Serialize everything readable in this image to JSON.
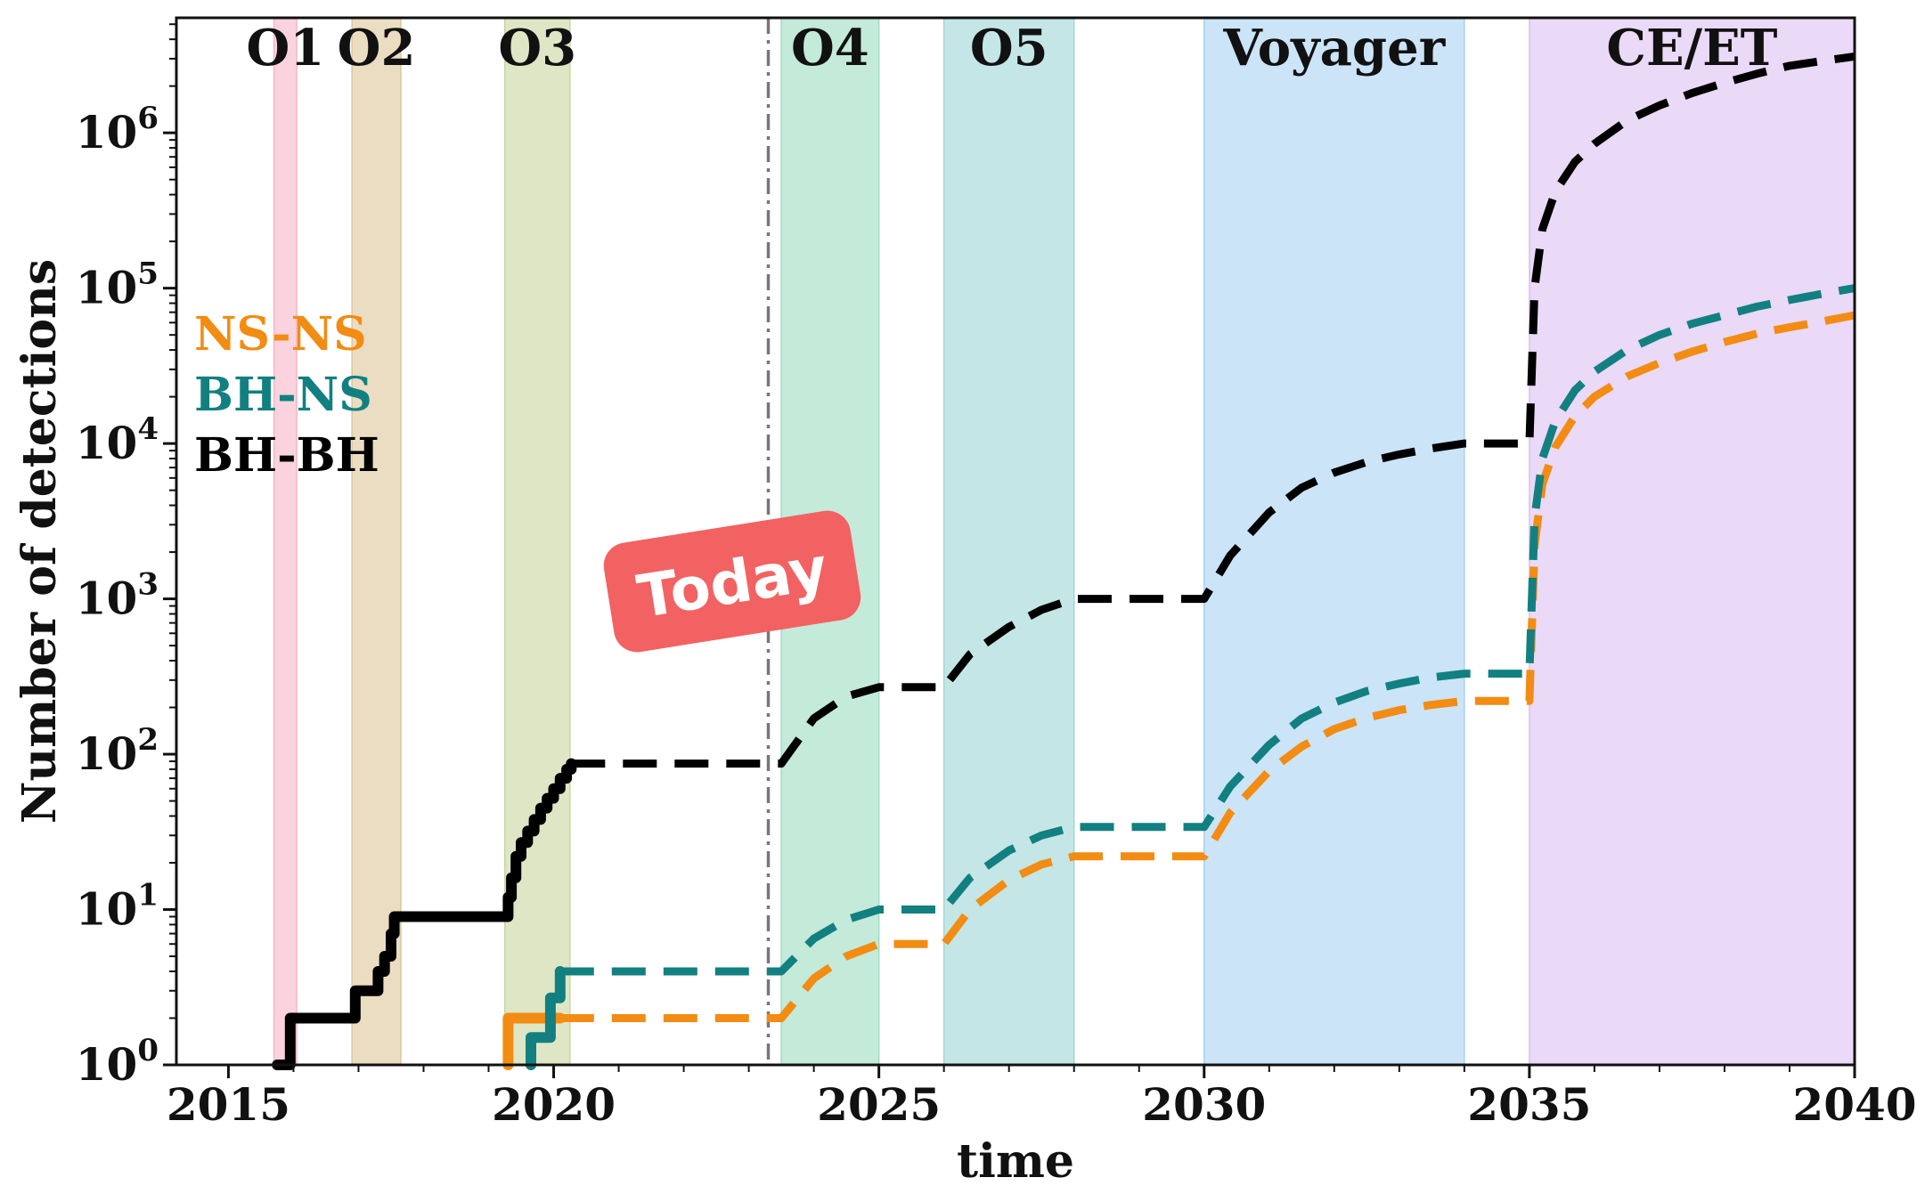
{
  "chart_data": {
    "type": "line",
    "xlabel": "time",
    "ylabel": "Number of detections",
    "xlim": [
      2014.2,
      2040
    ],
    "ylim": [
      1,
      5500000
    ],
    "yscale": "log",
    "grid": false,
    "legend_placement": "left",
    "x_ticks": [
      2015,
      2020,
      2025,
      2030,
      2035,
      2040
    ],
    "y_ticks": [
      {
        "value": 1,
        "base": "10",
        "exp": "0"
      },
      {
        "value": 10,
        "base": "10",
        "exp": "1"
      },
      {
        "value": 100,
        "base": "10",
        "exp": "2"
      },
      {
        "value": 1000,
        "base": "10",
        "exp": "3"
      },
      {
        "value": 10000,
        "base": "10",
        "exp": "4"
      },
      {
        "value": 100000,
        "base": "10",
        "exp": "5"
      },
      {
        "value": 1000000,
        "base": "10",
        "exp": "6"
      }
    ],
    "runs": [
      {
        "label": "O1",
        "start": 2015.7,
        "end": 2016.05,
        "color": "#f7b6c8"
      },
      {
        "label": "O2",
        "start": 2016.9,
        "end": 2017.65,
        "color": "#dcc69a"
      },
      {
        "label": "O3",
        "start": 2019.25,
        "end": 2020.25,
        "color": "#c8d59e"
      },
      {
        "label": "O4",
        "start": 2023.5,
        "end": 2025.0,
        "color": "#9ddcc0"
      },
      {
        "label": "O5",
        "start": 2026.0,
        "end": 2028.0,
        "color": "#9fd6d6"
      },
      {
        "label": "Voyager",
        "start": 2030.0,
        "end": 2034.0,
        "color": "#a8d2f2"
      },
      {
        "label": "CE/ET",
        "start": 2035.0,
        "end": 2040.0,
        "color": "#dcc0f2"
      }
    ],
    "today": {
      "x": 2023.3,
      "label": "Today",
      "badge_color": "#f26262"
    },
    "series": [
      {
        "name": "NS-NS",
        "color": "#f28c13",
        "observed": [
          [
            2019.3,
            1
          ],
          [
            2019.3,
            2
          ],
          [
            2020.1,
            2
          ]
        ],
        "projected": [
          [
            2020.1,
            2
          ],
          [
            2023.5,
            2
          ],
          [
            2024.0,
            3.6
          ],
          [
            2024.5,
            5
          ],
          [
            2025.0,
            6
          ],
          [
            2026.0,
            6
          ],
          [
            2026.4,
            10
          ],
          [
            2027.0,
            15.5
          ],
          [
            2027.5,
            19.5
          ],
          [
            2028.0,
            22
          ],
          [
            2030.0,
            22
          ],
          [
            2030.4,
            42
          ],
          [
            2031.0,
            78
          ],
          [
            2031.5,
            112
          ],
          [
            2032.0,
            145
          ],
          [
            2032.5,
            171
          ],
          [
            2033.0,
            192
          ],
          [
            2033.5,
            208
          ],
          [
            2034.0,
            220
          ],
          [
            2035.0,
            220
          ],
          [
            2035.08,
            2200
          ],
          [
            2035.2,
            5500
          ],
          [
            2035.4,
            9500
          ],
          [
            2035.7,
            15000
          ],
          [
            2036.0,
            20000
          ],
          [
            2036.5,
            27000
          ],
          [
            2037.0,
            33000
          ],
          [
            2037.5,
            39000
          ],
          [
            2038.0,
            45000
          ],
          [
            2038.5,
            51000
          ],
          [
            2039.0,
            56000
          ],
          [
            2039.5,
            61000
          ],
          [
            2040.0,
            67000
          ]
        ]
      },
      {
        "name": "BH-NS",
        "color": "#128080",
        "observed": [
          [
            2019.65,
            1
          ],
          [
            2019.65,
            1.5
          ],
          [
            2019.95,
            1.5
          ],
          [
            2019.95,
            2.7
          ],
          [
            2020.1,
            2.7
          ],
          [
            2020.1,
            4
          ]
        ],
        "projected": [
          [
            2020.1,
            4
          ],
          [
            2023.5,
            4
          ],
          [
            2024.0,
            6.5
          ],
          [
            2024.5,
            8.6
          ],
          [
            2025.0,
            10
          ],
          [
            2026.0,
            10
          ],
          [
            2026.4,
            16
          ],
          [
            2027.0,
            24
          ],
          [
            2027.5,
            30
          ],
          [
            2028.0,
            34
          ],
          [
            2030.0,
            34
          ],
          [
            2030.4,
            62
          ],
          [
            2031.0,
            115
          ],
          [
            2031.5,
            170
          ],
          [
            2032.0,
            215
          ],
          [
            2032.5,
            255
          ],
          [
            2033.0,
            285
          ],
          [
            2033.5,
            312
          ],
          [
            2034.0,
            330
          ],
          [
            2035.0,
            330
          ],
          [
            2035.08,
            3300
          ],
          [
            2035.2,
            8000
          ],
          [
            2035.4,
            14000
          ],
          [
            2035.7,
            22000
          ],
          [
            2036.0,
            29000
          ],
          [
            2036.5,
            40000
          ],
          [
            2037.0,
            50000
          ],
          [
            2037.5,
            59000
          ],
          [
            2038.0,
            67000
          ],
          [
            2038.5,
            76000
          ],
          [
            2039.0,
            84000
          ],
          [
            2039.5,
            92000
          ],
          [
            2040.0,
            100000
          ]
        ]
      },
      {
        "name": "BH-BH",
        "color": "#000000",
        "observed": [
          [
            2015.75,
            1
          ],
          [
            2015.95,
            1
          ],
          [
            2015.95,
            2
          ],
          [
            2016.95,
            2
          ],
          [
            2016.95,
            3
          ],
          [
            2017.3,
            3
          ],
          [
            2017.3,
            4
          ],
          [
            2017.4,
            4
          ],
          [
            2017.4,
            5
          ],
          [
            2017.5,
            5
          ],
          [
            2017.5,
            7
          ],
          [
            2017.55,
            7
          ],
          [
            2017.55,
            9
          ],
          [
            2019.3,
            9
          ],
          [
            2019.3,
            12
          ],
          [
            2019.35,
            12
          ],
          [
            2019.35,
            16
          ],
          [
            2019.42,
            16
          ],
          [
            2019.42,
            22
          ],
          [
            2019.5,
            22
          ],
          [
            2019.5,
            27
          ],
          [
            2019.6,
            27
          ],
          [
            2019.6,
            32
          ],
          [
            2019.7,
            32
          ],
          [
            2019.7,
            38
          ],
          [
            2019.8,
            38
          ],
          [
            2019.8,
            45
          ],
          [
            2019.9,
            45
          ],
          [
            2019.9,
            52
          ],
          [
            2020.0,
            52
          ],
          [
            2020.0,
            60
          ],
          [
            2020.1,
            60
          ],
          [
            2020.1,
            70
          ],
          [
            2020.2,
            70
          ],
          [
            2020.2,
            80
          ],
          [
            2020.27,
            80
          ],
          [
            2020.27,
            87
          ]
        ],
        "projected": [
          [
            2020.27,
            87
          ],
          [
            2023.5,
            87
          ],
          [
            2024.0,
            170
          ],
          [
            2024.5,
            235
          ],
          [
            2025.0,
            270
          ],
          [
            2026.0,
            270
          ],
          [
            2026.4,
            440
          ],
          [
            2027.0,
            660
          ],
          [
            2027.5,
            850
          ],
          [
            2028.0,
            1000
          ],
          [
            2030.0,
            1000
          ],
          [
            2030.4,
            1900
          ],
          [
            2031.0,
            3600
          ],
          [
            2031.5,
            5200
          ],
          [
            2032.0,
            6500
          ],
          [
            2032.5,
            7600
          ],
          [
            2033.0,
            8500
          ],
          [
            2033.5,
            9300
          ],
          [
            2034.0,
            10000
          ],
          [
            2035.0,
            10000
          ],
          [
            2035.08,
            100000
          ],
          [
            2035.2,
            240000
          ],
          [
            2035.4,
            420000
          ],
          [
            2035.7,
            650000
          ],
          [
            2036.0,
            850000
          ],
          [
            2036.5,
            1200000
          ],
          [
            2037.0,
            1500000
          ],
          [
            2037.5,
            1800000
          ],
          [
            2038.0,
            2100000
          ],
          [
            2038.5,
            2400000
          ],
          [
            2039.0,
            2700000
          ],
          [
            2039.5,
            2900000
          ],
          [
            2040.0,
            3100000
          ]
        ]
      }
    ]
  }
}
